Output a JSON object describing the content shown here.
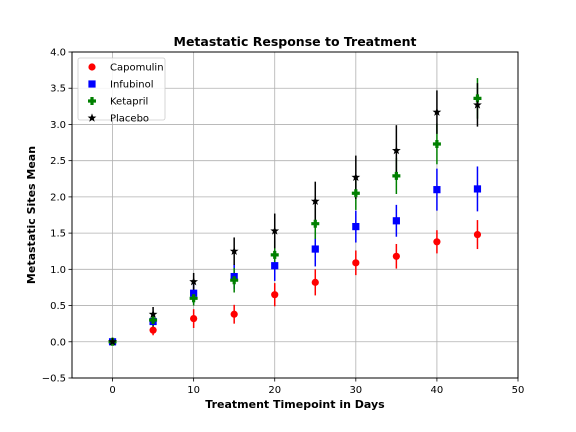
{
  "chart_data": {
    "type": "scatter",
    "title": "Metastatic Response to Treatment",
    "xlabel": "Treatment Timepoint in Days",
    "ylabel": "Metastatic Sites Mean",
    "xlim": [
      -5,
      50
    ],
    "ylim": [
      -0.5,
      4.0
    ],
    "xticks": [
      0,
      10,
      20,
      30,
      40,
      50
    ],
    "yticks": [
      -0.5,
      0.0,
      0.5,
      1.0,
      1.5,
      2.0,
      2.5,
      3.0,
      3.5,
      4.0
    ],
    "grid": true,
    "legend_position": "top-left",
    "x": [
      0,
      5,
      10,
      15,
      20,
      25,
      30,
      35,
      40,
      45
    ],
    "series": [
      {
        "name": "Capomulin",
        "color": "#ff0000",
        "marker": "circle",
        "values": [
          0.0,
          0.16,
          0.32,
          0.38,
          0.65,
          0.82,
          1.09,
          1.18,
          1.38,
          1.48
        ],
        "errors": [
          0.0,
          0.07,
          0.13,
          0.13,
          0.16,
          0.18,
          0.17,
          0.17,
          0.16,
          0.2
        ]
      },
      {
        "name": "Infubinol",
        "color": "#0000ff",
        "marker": "square",
        "values": [
          0.0,
          0.28,
          0.67,
          0.9,
          1.05,
          1.28,
          1.59,
          1.67,
          2.1,
          2.11
        ],
        "errors": [
          0.0,
          0.07,
          0.14,
          0.17,
          0.21,
          0.24,
          0.22,
          0.22,
          0.29,
          0.31
        ]
      },
      {
        "name": "Ketapril",
        "color": "#008000",
        "marker": "plus",
        "values": [
          0.0,
          0.3,
          0.6,
          0.85,
          1.2,
          1.63,
          2.05,
          2.29,
          2.73,
          3.36
        ],
        "errors": [
          0.0,
          0.09,
          0.1,
          0.17,
          0.2,
          0.21,
          0.23,
          0.25,
          0.28,
          0.28
        ]
      },
      {
        "name": "Placebo",
        "color": "#000000",
        "marker": "star",
        "values": [
          0.0,
          0.38,
          0.83,
          1.25,
          1.53,
          1.94,
          2.27,
          2.64,
          3.17,
          3.27
        ],
        "errors": [
          0.0,
          0.1,
          0.12,
          0.19,
          0.24,
          0.27,
          0.3,
          0.35,
          0.3,
          0.3
        ]
      }
    ]
  }
}
